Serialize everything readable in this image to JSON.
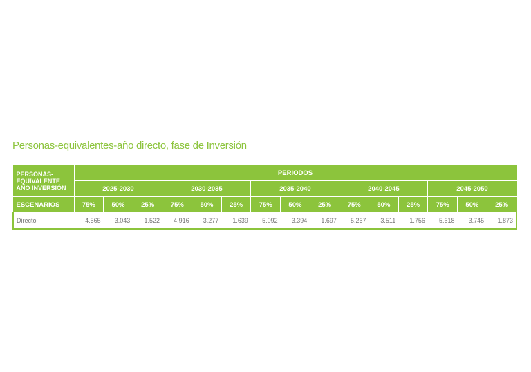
{
  "title": "Personas-equivalentes-año directo, fase de Inversión",
  "table": {
    "corner": [
      "PERSONAS-",
      "EQUIVALENTE",
      "AÑO INVERSIÓN"
    ],
    "group_header": "PERIODOS",
    "periods": [
      "2025-2030",
      "2030-2035",
      "2035-2040",
      "2040-2045",
      "2045-2050"
    ],
    "row_header": "ESCENARIOS",
    "scenarios": [
      "75%",
      "50%",
      "25%"
    ],
    "rows": [
      {
        "label": "Directo",
        "values": [
          "4.565",
          "3.043",
          "1.522",
          "4.916",
          "3.277",
          "1.639",
          "5.092",
          "3.394",
          "1.697",
          "5.267",
          "3.511",
          "1.756",
          "5.618",
          "3.745",
          "1.873"
        ]
      }
    ]
  }
}
